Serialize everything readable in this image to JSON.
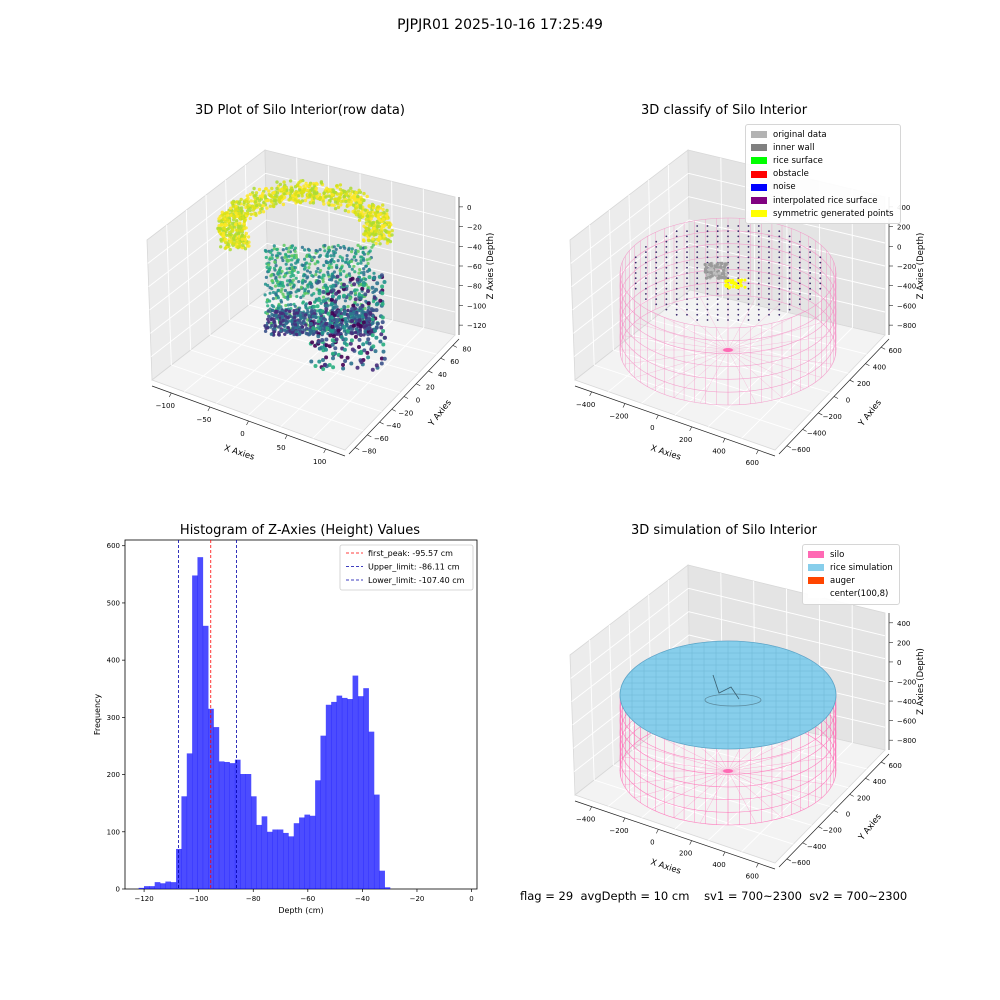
{
  "suptitle": "PJPJR01 2025-10-16 17:25:49",
  "panels": {
    "raw": {
      "title": "3D Plot of Silo Interior(row data)",
      "xlabel": "X Axies",
      "ylabel": "Y Axies",
      "zlabel": "Z Axies (Depth)",
      "xticks": [
        "−100",
        "−50",
        "0",
        "50",
        "100"
      ],
      "yticks": [
        "80",
        "60",
        "40",
        "20",
        "0",
        "−20",
        "−40",
        "−60",
        "−80"
      ],
      "zticks": [
        "0",
        "−20",
        "−40",
        "−60",
        "−80",
        "−100",
        "−120"
      ]
    },
    "classify": {
      "title": "3D classify of Silo Interior",
      "xlabel": "X Axies",
      "ylabel": "Y Axies",
      "zlabel": "Z Axies (Depth)",
      "xticks": [
        "−400",
        "−200",
        "0",
        "200",
        "400",
        "600"
      ],
      "yticks": [
        "600",
        "400",
        "200",
        "0",
        "−200",
        "−400",
        "−600"
      ],
      "zticks": [
        "400",
        "200",
        "0",
        "−200",
        "−400",
        "−600",
        "−800"
      ],
      "legend": [
        {
          "label": "original data",
          "color": "#b3b3b3"
        },
        {
          "label": "inner wall",
          "color": "#808080"
        },
        {
          "label": "rice surface",
          "color": "#00ff00"
        },
        {
          "label": "obstacle",
          "color": "#ff0000"
        },
        {
          "label": "noise",
          "color": "#0000ff"
        },
        {
          "label": "interpolated rice surface",
          "color": "#800080"
        },
        {
          "label": "symmetric generated points",
          "color": "#ffff00"
        }
      ]
    },
    "simulation": {
      "title": "3D simulation of Silo Interior",
      "xlabel": "X Axies",
      "ylabel": "Y Axies",
      "zlabel": "Z Axies (Depth)",
      "xticks": [
        "−400",
        "−200",
        "0",
        "200",
        "400",
        "600"
      ],
      "yticks": [
        "600",
        "400",
        "200",
        "0",
        "−200",
        "−400",
        "−600"
      ],
      "zticks": [
        "400",
        "200",
        "0",
        "−200",
        "−400",
        "−600",
        "−800"
      ],
      "legend": [
        {
          "label": "silo",
          "color": "#ff69b4"
        },
        {
          "label": "rice simulation",
          "color": "#87ceeb"
        },
        {
          "label": "auger",
          "color": "#ff4500"
        },
        {
          "label": "center(100,8)",
          "color": "#ffffff"
        }
      ]
    }
  },
  "status": {
    "flag": "flag = 29",
    "avg_depth": "avgDepth = 10 cm",
    "sv1": "sv1 = 700~2300",
    "sv2": "sv2 = 700~2300"
  },
  "chart_data": [
    {
      "type": "scatter",
      "title": "3D Plot of Silo Interior(row data)",
      "xlabel": "X Axies",
      "ylabel": "Y Axies",
      "zlabel": "Z Axies (Depth)",
      "xlim": [
        -120,
        120
      ],
      "ylim": [
        -85,
        85
      ],
      "zlim": [
        -130,
        5
      ],
      "colormap": "viridis",
      "grid": true
    },
    {
      "type": "scatter",
      "title": "3D classify of Silo Interior",
      "xlabel": "X Axies",
      "ylabel": "Y Axies",
      "zlabel": "Z Axies (Depth)",
      "xlim": [
        -500,
        700
      ],
      "ylim": [
        -650,
        650
      ],
      "zlim": [
        -900,
        450
      ],
      "series": [
        {
          "name": "original data"
        },
        {
          "name": "inner wall"
        },
        {
          "name": "rice surface"
        },
        {
          "name": "obstacle"
        },
        {
          "name": "noise"
        },
        {
          "name": "interpolated rice surface"
        },
        {
          "name": "symmetric generated points"
        }
      ],
      "legend": "top-right",
      "grid": true
    },
    {
      "type": "bar",
      "title": "Histogram of Z-Axies (Height) Values",
      "xlabel": "Depth (cm)",
      "ylabel": "Frequency",
      "xlim": [
        -127,
        2
      ],
      "ylim": [
        0,
        610
      ],
      "xticks": [
        -120,
        -100,
        -80,
        -60,
        -40,
        -20,
        0
      ],
      "yticks": [
        0,
        100,
        200,
        300,
        400,
        500,
        600
      ],
      "bin_start": -122,
      "bin_width": 1.96,
      "values": [
        2,
        5,
        5,
        12,
        10,
        13,
        12,
        70,
        162,
        237,
        548,
        580,
        460,
        315,
        283,
        223,
        222,
        220,
        226,
        201,
        201,
        162,
        112,
        127,
        100,
        104,
        104,
        98,
        92,
        115,
        125,
        130,
        128,
        190,
        268,
        322,
        327,
        338,
        334,
        332,
        373,
        337,
        351,
        275,
        165,
        32,
        3
      ],
      "bar_color": "#0000ff",
      "bar_alpha": 0.7,
      "lines": [
        {
          "label": "first_peak: -95.57 cm",
          "x": -95.57,
          "color": "#ff0000"
        },
        {
          "label": "Upper_limit: -86.11 cm",
          "x": -86.11,
          "color": "#0000aa"
        },
        {
          "label": "Lower_limit: -107.40 cm",
          "x": -107.4,
          "color": "#0000aa"
        }
      ],
      "legend": "top-right",
      "grid": false
    },
    {
      "type": "surface",
      "title": "3D simulation of Silo Interior",
      "xlabel": "X Axies",
      "ylabel": "Y Axies",
      "zlabel": "Z Axies (Depth)",
      "xlim": [
        -500,
        700
      ],
      "ylim": [
        -650,
        650
      ],
      "zlim": [
        -900,
        450
      ],
      "series": [
        {
          "name": "silo"
        },
        {
          "name": "rice simulation"
        },
        {
          "name": "auger"
        },
        {
          "name": "center(100,8)"
        }
      ],
      "legend": "top-right",
      "grid": true
    }
  ]
}
